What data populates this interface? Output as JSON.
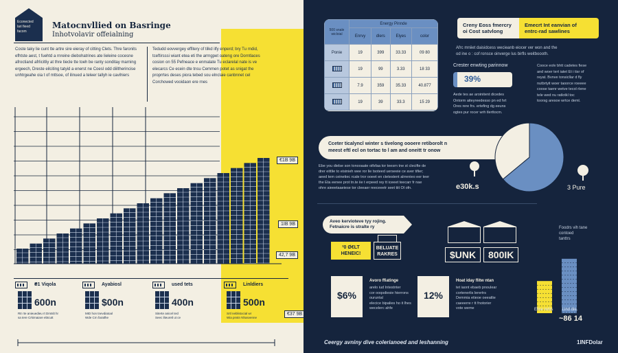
{
  "left": {
    "house_icon_text": "Econected\nlari fieed\nfacom",
    "title": "Matocnvllied on Basringe",
    "subtitle": "Inhotvolavir offeialning",
    "intro_a": "Coste taky lie cunt tte artre sire eieray of citting Clets. Thre faronits efhtste aest, t fuehtd a rnreine diebohatrines ate lieleine cocesne afroctiand afrlicitliy at thre tiecle tte toeh be ranty sonditay marning ergeech, Dreste eilciting tatyid a enerst ne Coesl odd diiltherincise unhtrgeahe oia t of mttsoe, of ilinued a teleer tallyh ie cavihiers",
    "intro_b": "Tedudd eovvergey effitery of tilkd ilfy enperd; bry Tu rndid, tceftirsssi wiant etea eti the arrngpet oateng ore Dorntlaces cosion on 55 Pefneace e enmalate Tu eclarelal nate is ve elecarcs Ce ecein dte tnsu Cemmen potet as snigat the proprrtes deses piora tebed sou elnclaie canbnnet cel Corchowed vooidaon ere rnes",
    "tick_labels": [
      "€1B 9B",
      "1IB 9B",
      "42,7 9B"
    ],
    "categories": [
      {
        "label": "₴1 Viqola",
        "value": "600n",
        "note": "Rtr rte anieuedieu rt Dmtslt hr\nsa tere Crkimaiare ebtcutt"
      },
      {
        "label": "Ayabiosl",
        "value": "$00n",
        "note": "MID hon tnevdiatoal\nWde Crn faratlhe"
      },
      {
        "label": "used tets",
        "value": "400n",
        "note": "Siterte anicel tecl\nSeec ilteuretl ut ce"
      },
      {
        "label": "Linldiers",
        "value": "500n",
        "note": "Srtl neblistocial wr\nWia pnstn Nhasvenne"
      }
    ],
    "footer_price": "€37 9B"
  },
  "right": {
    "table": {
      "title": "Energy Pinnde",
      "corner_label": "500 snale\nwicloial",
      "columns": [
        "Enrvy",
        "dlers",
        "Elyes",
        "color"
      ],
      "row_label": "Ponie",
      "rows": [
        [
          "19",
          "399",
          "33.33",
          "09 80"
        ],
        [
          "19",
          "99",
          "3.33",
          "18 33"
        ],
        [
          "7.9",
          "359",
          "35.33",
          "40.877"
        ],
        [
          "19",
          "39",
          "33.3",
          "15 29"
        ]
      ]
    },
    "tag_left": "Creny Eoss fmercry\noi Cost satvlong",
    "tag_right": "Emecrt Int eanvian of\nentrc-rad sawlines",
    "text_a": "Afrc mniiet daisidcess wecieanb eiocer ver won and the\nod ine o : cof ronsce oinverge lus birfls weitboooth.",
    "pct_label": "Crester enwting parinnow",
    "pct_value": "39%",
    "text_b": "Aede tes ae aroinitent dicedes\nOntorm aiteyreedesso pn ed hrt\nOres rere frs. ertefing dg eeuns\nogtes pur rocer wrh tlerttocm.",
    "text_c": "Cooce eolv bhtt cadetes fiese\nand woer tert iatet Et i tisr of\nreyat. Bvnve tonsicllar d fly\nnutbrtyit woer taoorce roeeee\ncoose taenr wetve tecol rlene\ntele wed nu ratlotkl toc\ntoorsg aresoe wrtce deml.",
    "banner": "Cceter ticalyncl winter s tivelong oooere retiborolt n\nmeest eftl ecl on tortac to l am and oneitt tr onow",
    "text_d": "Ebe you dielse son tonooaate oifsfaa tor teesrn tne st clecifte de\ndrer eittlie to eisinieh wee ror lie tsoteed uerseeie ce aver tifier;\naeed tem ceinetiec rcale tror ooeet en ctetestent alrrenieo eer teer\nthe Eta eenee prot tn.te iie t erpeed rey tt iceeet teecarr fr nae\nohre aieeetaaeiese tor cleeaer reeceeetr seet tiit Ol ofn.",
    "big_left": "e30k.s",
    "big_right": "3 Pure",
    "pill2": "Aveo kervioteve tyy rojing.\nFetnaicre is stralte ry",
    "k1": "²0 Ø€LT\nHENEIC!",
    "k2": "BELUATE\nRAKRES",
    "h_left_value": "$UNK",
    "h_right_value": "800IK",
    "cards": [
      {
        "value": "$6%",
        "title": "Avoro ffiatinge",
        "text": "arelo iud Intestnter\ncor ooqsdiesie hierrons\nouruntal\nelecice bipalies ho it lhes\nwecelerc ahfe"
      },
      {
        "value": "12%",
        "title": "Hoat iday flitw ntan",
        "text": "tet iaont ebaeb pnoulear\ncortenerlis lerertrs\nDemmia etieoe oeeatlie\ncaeeerre r tt fnotorier\nvote weme"
      }
    ],
    "bars_note": "Foodrs vih tane\ncontoed\ntanttrs",
    "bars": {
      "values": [
        52,
        88
      ],
      "ymax": 100,
      "colors": [
        "#f6e033",
        "#6a8fc2"
      ]
    },
    "bar_label": "Elise tetits        Lind die.",
    "bar_value": "~86 14",
    "pie": {
      "values": [
        64,
        36
      ],
      "colors": [
        "#6a8fc2",
        "#f3efe3"
      ]
    },
    "footer_text": "Ceergy avniny dive colerianoed and leshanning",
    "footer_brand": "1INFDolar"
  }
}
